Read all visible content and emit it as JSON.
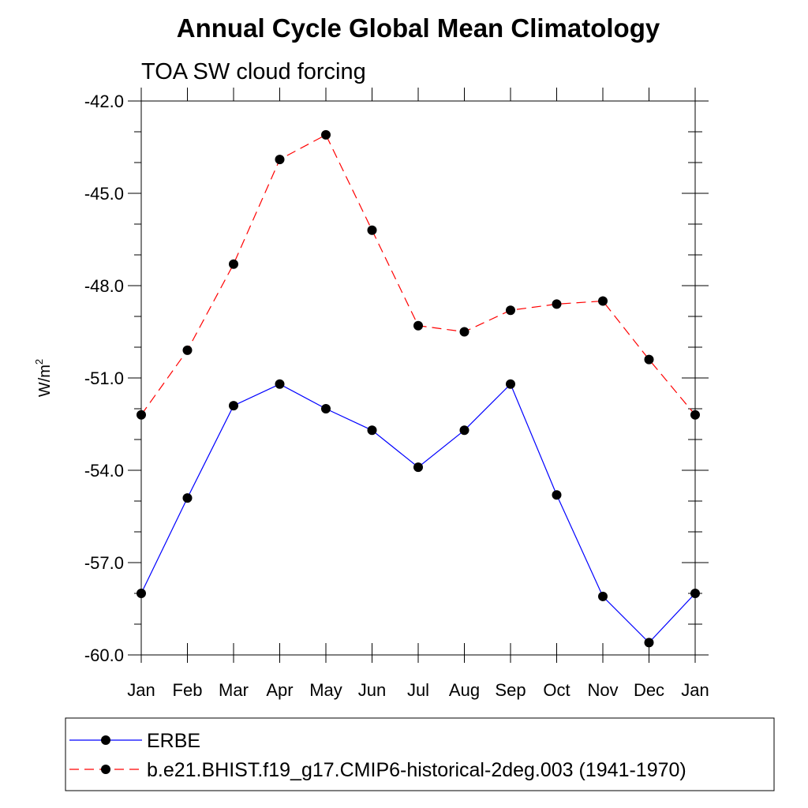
{
  "title": "Annual Cycle Global Mean Climatology",
  "subtitle": "TOA SW cloud forcing",
  "chart_data": {
    "type": "line",
    "categories": [
      "Jan",
      "Feb",
      "Mar",
      "Apr",
      "May",
      "Jun",
      "Jul",
      "Aug",
      "Sep",
      "Oct",
      "Nov",
      "Dec",
      "Jan"
    ],
    "ylabel_main": "W/m",
    "ylabel_sup": "2",
    "ylim": [
      -60.0,
      -42.0
    ],
    "yticks": [
      "-42.0",
      "-45.0",
      "-48.0",
      "-51.0",
      "-54.0",
      "-57.0",
      "-60.0"
    ],
    "grid": false,
    "legend_position": "bottom",
    "series": [
      {
        "name": "ERBE",
        "color": "#0000ff",
        "dash": "solid",
        "values": [
          -58.0,
          -54.9,
          -51.9,
          -51.2,
          -52.0,
          -52.7,
          -53.9,
          -52.7,
          -51.2,
          -54.8,
          -58.1,
          -59.6,
          -58.0
        ]
      },
      {
        "name": "b.e21.BHIST.f19_g17.CMIP6-historical-2deg.003 (1941-1970)",
        "color": "#ff0000",
        "dash": "dashed",
        "values": [
          -52.2,
          -50.1,
          -47.3,
          -43.9,
          -43.1,
          -46.2,
          -49.3,
          -49.5,
          -48.8,
          -48.6,
          -48.5,
          -50.4,
          -52.2
        ]
      }
    ]
  }
}
